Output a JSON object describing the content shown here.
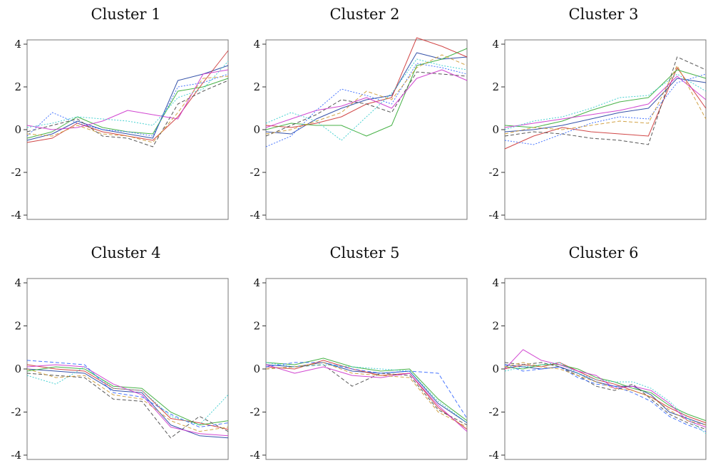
{
  "chart_data": [
    {
      "type": "line",
      "title": "Cluster 1",
      "ylim": [
        -4.2,
        4.2
      ],
      "yticks": [
        4,
        2,
        0,
        -2,
        -4
      ],
      "grid": false,
      "x": [
        1,
        2,
        3,
        4,
        5,
        6,
        7,
        8,
        9
      ],
      "series": [
        {
          "values": [
            -0.5,
            -0.2,
            0.4,
            0.0,
            -0.2,
            -0.4,
            2.3,
            2.6,
            3.0
          ],
          "color": "#1f3fa0",
          "style": "solid"
        },
        {
          "values": [
            -0.6,
            -0.4,
            0.3,
            -0.1,
            -0.3,
            -0.5,
            0.6,
            2.2,
            3.7
          ],
          "color": "#cc3333",
          "style": "solid"
        },
        {
          "values": [
            -0.4,
            -0.1,
            0.6,
            0.1,
            -0.1,
            -0.2,
            1.8,
            2.0,
            2.4
          ],
          "color": "#33aa33",
          "style": "solid"
        },
        {
          "values": [
            -0.1,
            0.2,
            0.5,
            -0.3,
            -0.4,
            -0.8,
            1.2,
            1.8,
            2.3
          ],
          "color": "#444444",
          "style": "dashed"
        },
        {
          "values": [
            0.2,
            0.0,
            0.1,
            0.4,
            0.9,
            0.7,
            0.5,
            2.6,
            2.8
          ],
          "color": "#cc33cc",
          "style": "solid"
        },
        {
          "values": [
            -0.3,
            0.8,
            0.3,
            0.0,
            -0.1,
            -0.3,
            2.0,
            2.2,
            2.6
          ],
          "color": "#3366ff",
          "style": "dotted"
        },
        {
          "values": [
            0.1,
            0.3,
            0.6,
            0.5,
            0.4,
            0.2,
            1.5,
            1.9,
            3.2
          ],
          "color": "#33cccc",
          "style": "dotted"
        },
        {
          "values": [
            -0.2,
            -0.3,
            0.2,
            -0.2,
            -0.3,
            -0.6,
            0.8,
            2.4,
            2.5
          ],
          "color": "#cc9933",
          "style": "dashed"
        }
      ]
    },
    {
      "type": "line",
      "title": "Cluster 2",
      "ylim": [
        -4.2,
        4.2
      ],
      "yticks": [
        4,
        2,
        0,
        -2,
        -4
      ],
      "grid": false,
      "x": [
        1,
        2,
        3,
        4,
        5,
        6,
        7,
        8,
        9
      ],
      "series": [
        {
          "values": [
            -0.1,
            -0.2,
            0.5,
            1.0,
            1.4,
            1.6,
            3.6,
            3.3,
            3.4
          ],
          "color": "#1f3fa0",
          "style": "solid"
        },
        {
          "values": [
            0.2,
            0.1,
            0.3,
            0.6,
            1.2,
            1.5,
            4.3,
            3.9,
            3.4
          ],
          "color": "#cc3333",
          "style": "solid"
        },
        {
          "values": [
            0.0,
            0.3,
            0.2,
            0.2,
            -0.3,
            0.2,
            3.0,
            3.3,
            3.8
          ],
          "color": "#33aa33",
          "style": "solid"
        },
        {
          "values": [
            -0.3,
            0.2,
            0.7,
            1.4,
            1.2,
            0.8,
            2.7,
            2.6,
            2.5
          ],
          "color": "#444444",
          "style": "dashed"
        },
        {
          "values": [
            0.1,
            0.5,
            0.9,
            1.1,
            1.5,
            1.0,
            2.4,
            2.8,
            2.3
          ],
          "color": "#cc33cc",
          "style": "solid"
        },
        {
          "values": [
            -0.8,
            -0.3,
            0.9,
            1.9,
            1.6,
            1.2,
            3.1,
            2.9,
            2.6
          ],
          "color": "#3366ff",
          "style": "dotted"
        },
        {
          "values": [
            0.3,
            0.8,
            0.4,
            -0.5,
            0.6,
            1.7,
            3.3,
            3.0,
            2.8
          ],
          "color": "#33cccc",
          "style": "dotted"
        },
        {
          "values": [
            -0.2,
            0.0,
            0.4,
            0.8,
            1.8,
            1.4,
            2.9,
            3.5,
            3.0
          ],
          "color": "#cc9933",
          "style": "dashed"
        }
      ]
    },
    {
      "type": "line",
      "title": "Cluster 3",
      "ylim": [
        -4.2,
        4.2
      ],
      "yticks": [
        4,
        2,
        0,
        -2,
        -4
      ],
      "grid": false,
      "x": [
        1,
        2,
        3,
        4,
        5,
        6,
        7,
        8
      ],
      "series": [
        {
          "values": [
            -0.1,
            0.0,
            0.2,
            0.5,
            0.8,
            1.0,
            2.4,
            2.2
          ],
          "color": "#1f3fa0",
          "style": "solid"
        },
        {
          "values": [
            -0.9,
            -0.3,
            0.1,
            -0.1,
            -0.2,
            -0.3,
            2.9,
            1.0
          ],
          "color": "#cc3333",
          "style": "solid"
        },
        {
          "values": [
            0.2,
            0.1,
            0.4,
            0.9,
            1.3,
            1.5,
            2.8,
            2.4
          ],
          "color": "#33aa33",
          "style": "solid"
        },
        {
          "values": [
            -0.3,
            -0.1,
            -0.2,
            -0.4,
            -0.5,
            -0.7,
            3.4,
            2.8
          ],
          "color": "#444444",
          "style": "dashed"
        },
        {
          "values": [
            0.1,
            0.3,
            0.5,
            0.7,
            0.9,
            1.2,
            2.5,
            1.4
          ],
          "color": "#cc33cc",
          "style": "solid"
        },
        {
          "values": [
            -0.5,
            -0.7,
            -0.2,
            0.3,
            0.6,
            0.5,
            2.2,
            2.6
          ],
          "color": "#3366ff",
          "style": "dotted"
        },
        {
          "values": [
            0.0,
            0.4,
            0.6,
            1.0,
            1.5,
            1.6,
            2.6,
            1.8
          ],
          "color": "#33cccc",
          "style": "dotted"
        },
        {
          "values": [
            -0.2,
            0.1,
            0.0,
            0.2,
            0.4,
            0.3,
            3.0,
            0.5
          ],
          "color": "#cc9933",
          "style": "dashed"
        }
      ]
    },
    {
      "type": "line",
      "title": "Cluster 4",
      "ylim": [
        -4.2,
        4.2
      ],
      "yticks": [
        4,
        2,
        0,
        -2,
        -4
      ],
      "grid": false,
      "x": [
        1,
        2,
        3,
        4,
        5,
        6,
        7,
        8
      ],
      "series": [
        {
          "values": [
            0.0,
            -0.1,
            -0.2,
            -1.0,
            -1.1,
            -2.6,
            -3.1,
            -3.2
          ],
          "color": "#1f3fa0",
          "style": "solid"
        },
        {
          "values": [
            0.2,
            0.0,
            -0.1,
            -0.9,
            -1.0,
            -2.3,
            -2.5,
            -2.8
          ],
          "color": "#cc3333",
          "style": "solid"
        },
        {
          "values": [
            -0.1,
            0.1,
            0.0,
            -0.8,
            -0.9,
            -2.0,
            -2.6,
            -2.4
          ],
          "color": "#33aa33",
          "style": "solid"
        },
        {
          "values": [
            -0.2,
            -0.3,
            -0.4,
            -1.4,
            -1.5,
            -3.2,
            -2.2,
            -2.9
          ],
          "color": "#444444",
          "style": "dashed"
        },
        {
          "values": [
            0.1,
            0.2,
            0.1,
            -0.7,
            -1.2,
            -2.7,
            -3.0,
            -3.1
          ],
          "color": "#cc33cc",
          "style": "solid"
        },
        {
          "values": [
            0.4,
            0.3,
            0.2,
            -1.1,
            -1.3,
            -2.1,
            -2.7,
            -2.5
          ],
          "color": "#3366ff",
          "style": "dashed"
        },
        {
          "values": [
            -0.3,
            -0.7,
            0.1,
            -0.9,
            -1.0,
            -2.2,
            -2.6,
            -1.2
          ],
          "color": "#33cccc",
          "style": "dotted"
        },
        {
          "values": [
            0.0,
            -0.4,
            -0.3,
            -1.2,
            -1.4,
            -2.4,
            -2.9,
            -2.7
          ],
          "color": "#cc9933",
          "style": "dashed"
        }
      ]
    },
    {
      "type": "line",
      "title": "Cluster 5",
      "ylim": [
        -4.2,
        4.2
      ],
      "yticks": [
        4,
        2,
        0,
        -2,
        -4
      ],
      "grid": false,
      "x": [
        1,
        2,
        3,
        4,
        5,
        6,
        7,
        8
      ],
      "series": [
        {
          "values": [
            0.2,
            0.1,
            0.3,
            -0.1,
            -0.2,
            -0.1,
            -1.6,
            -2.5
          ],
          "color": "#1f3fa0",
          "style": "solid"
        },
        {
          "values": [
            0.1,
            0.0,
            0.4,
            0.0,
            -0.3,
            -0.2,
            -1.8,
            -2.8
          ],
          "color": "#cc3333",
          "style": "solid"
        },
        {
          "values": [
            0.3,
            0.2,
            0.5,
            0.1,
            -0.1,
            0.0,
            -1.4,
            -2.4
          ],
          "color": "#33aa33",
          "style": "solid"
        },
        {
          "values": [
            0.0,
            0.1,
            0.2,
            -0.8,
            -0.2,
            -0.3,
            -1.9,
            -2.6
          ],
          "color": "#444444",
          "style": "dashed"
        },
        {
          "values": [
            0.2,
            -0.2,
            0.1,
            -0.3,
            -0.4,
            -0.2,
            -1.7,
            -2.9
          ],
          "color": "#cc33cc",
          "style": "solid"
        },
        {
          "values": [
            0.1,
            0.3,
            0.3,
            0.0,
            -0.2,
            -0.1,
            -0.2,
            -2.3
          ],
          "color": "#3366ff",
          "style": "dashed"
        },
        {
          "values": [
            0.3,
            0.1,
            0.2,
            0.1,
            0.0,
            -0.1,
            -1.5,
            -2.5
          ],
          "color": "#33cccc",
          "style": "dotted"
        },
        {
          "values": [
            0.0,
            0.1,
            0.3,
            -0.2,
            -0.3,
            -0.4,
            -2.0,
            -2.7
          ],
          "color": "#cc9933",
          "style": "dashed"
        }
      ]
    },
    {
      "type": "line",
      "title": "Cluster 6",
      "ylim": [
        -4.2,
        4.2
      ],
      "yticks": [
        4,
        2,
        0,
        -2,
        -4
      ],
      "grid": false,
      "x": [
        1,
        2,
        3,
        4,
        5,
        6,
        7,
        8,
        9,
        10,
        11,
        12
      ],
      "series": [
        {
          "values": [
            0.2,
            0.1,
            0.0,
            0.1,
            -0.2,
            -0.6,
            -0.8,
            -0.8,
            -1.2,
            -2.0,
            -2.3,
            -2.6
          ],
          "color": "#1f3fa0",
          "style": "solid"
        },
        {
          "values": [
            0.0,
            0.2,
            0.1,
            0.3,
            -0.1,
            -0.5,
            -0.7,
            -1.0,
            -1.3,
            -1.8,
            -2.2,
            -2.5
          ],
          "color": "#cc3333",
          "style": "solid"
        },
        {
          "values": [
            0.1,
            0.0,
            0.2,
            0.2,
            0.0,
            -0.4,
            -0.6,
            -0.9,
            -1.1,
            -1.7,
            -2.1,
            -2.4
          ],
          "color": "#33aa33",
          "style": "solid"
        },
        {
          "values": [
            0.3,
            0.2,
            0.3,
            0.1,
            -0.3,
            -0.8,
            -1.0,
            -0.7,
            -1.4,
            -2.1,
            -2.5,
            -2.8
          ],
          "color": "#444444",
          "style": "dashed"
        },
        {
          "values": [
            0.0,
            0.9,
            0.4,
            0.2,
            -0.1,
            -0.3,
            -0.9,
            -0.8,
            -1.0,
            -1.6,
            -2.4,
            -2.7
          ],
          "color": "#cc33cc",
          "style": "solid"
        },
        {
          "values": [
            0.2,
            -0.1,
            0.0,
            0.1,
            -0.4,
            -0.7,
            -0.8,
            -1.1,
            -1.5,
            -2.2,
            -2.6,
            -2.9
          ],
          "color": "#3366ff",
          "style": "dashed"
        },
        {
          "values": [
            -0.1,
            0.1,
            0.2,
            0.3,
            -0.2,
            -0.5,
            -0.6,
            -0.6,
            -0.9,
            -1.5,
            -2.3,
            -3.0
          ],
          "color": "#33cccc",
          "style": "dotted"
        },
        {
          "values": [
            0.1,
            0.3,
            0.1,
            0.0,
            -0.3,
            -0.6,
            -0.9,
            -1.0,
            -1.3,
            -1.9,
            -2.4,
            -2.6
          ],
          "color": "#cc9933",
          "style": "dashed"
        }
      ]
    }
  ]
}
